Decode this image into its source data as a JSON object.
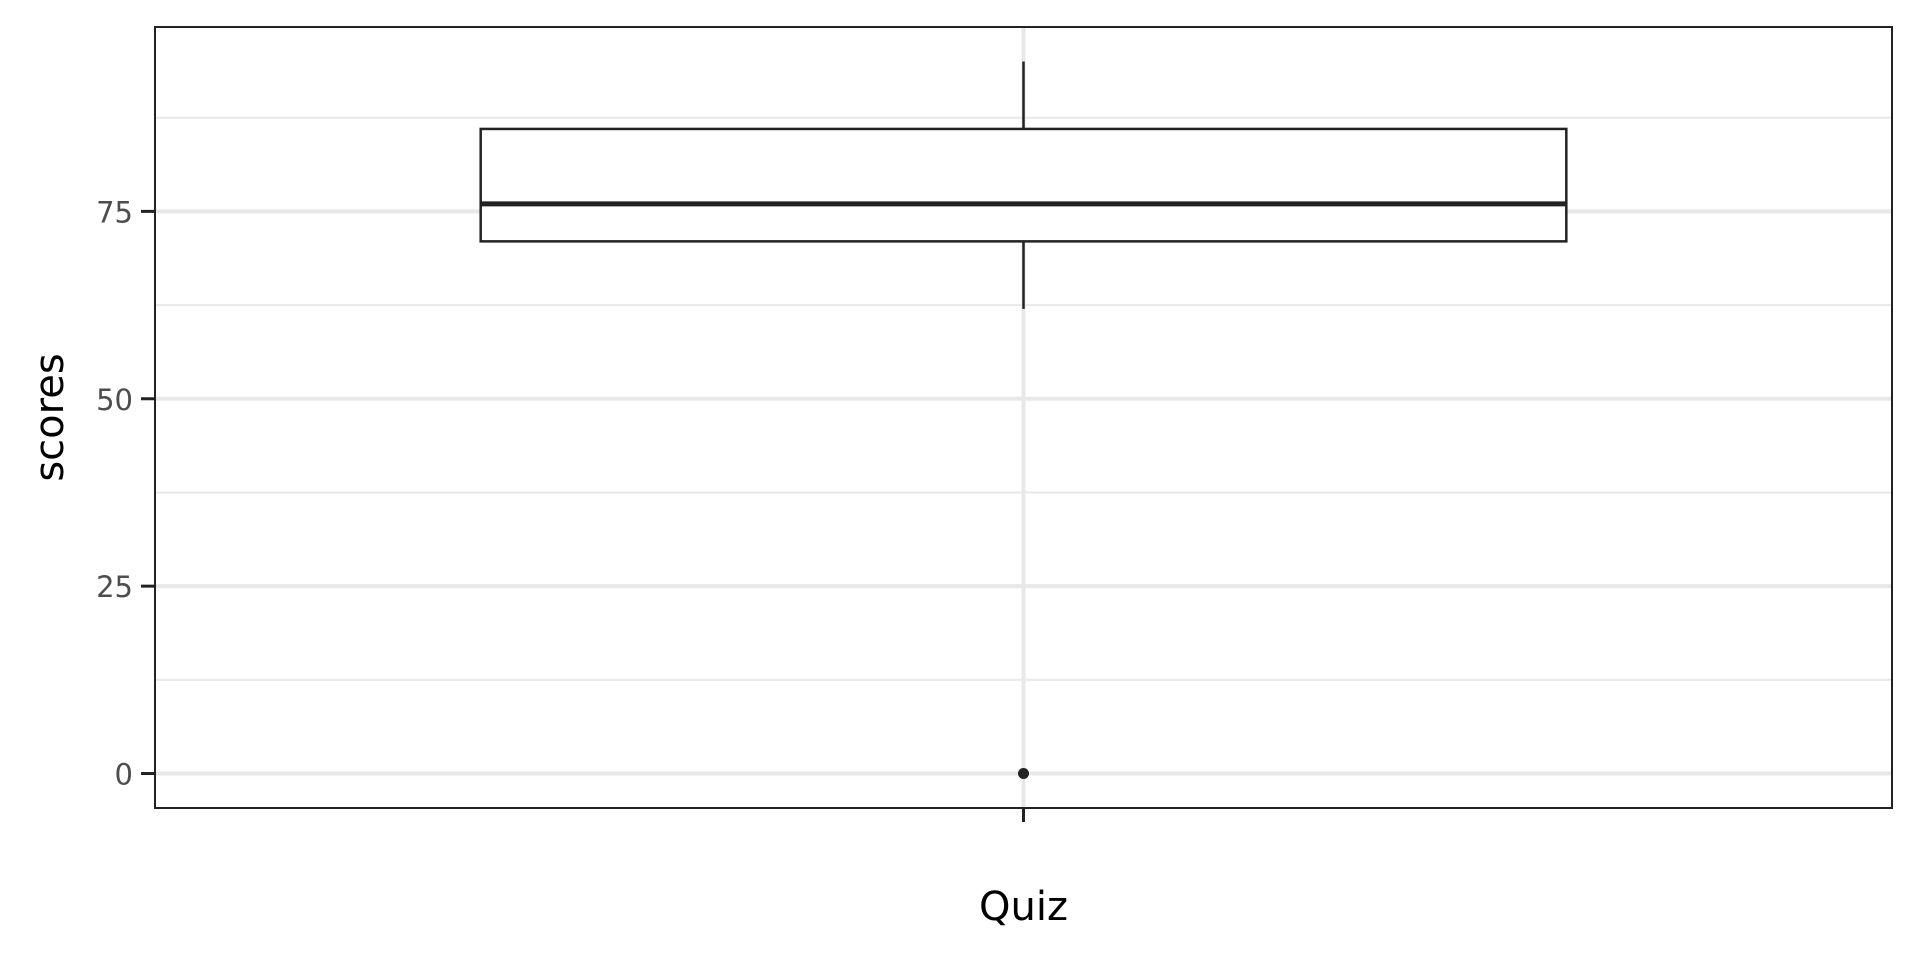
{
  "chart_data": {
    "type": "boxplot",
    "title": "",
    "xlabel": "Quiz",
    "ylabel": "scores",
    "categories": [
      ""
    ],
    "ylim": [
      -4.6,
      99.6
    ],
    "y_ticks": [
      0,
      25,
      50,
      75
    ],
    "y_tick_labels": [
      "0",
      "25",
      "50",
      "75"
    ],
    "grid": true,
    "legend": "none",
    "boxes": [
      {
        "category": "",
        "min": 62,
        "q1": 71,
        "median": 76,
        "q3": 86,
        "max": 95,
        "outliers": [
          0
        ]
      }
    ],
    "colors": {
      "box_line": "#222222",
      "box_fill": "#ffffff",
      "grid": "#e8e8e8",
      "panel_border": "#222222",
      "tick_label": "#4d4d4d",
      "axis_title": "#000000"
    }
  }
}
